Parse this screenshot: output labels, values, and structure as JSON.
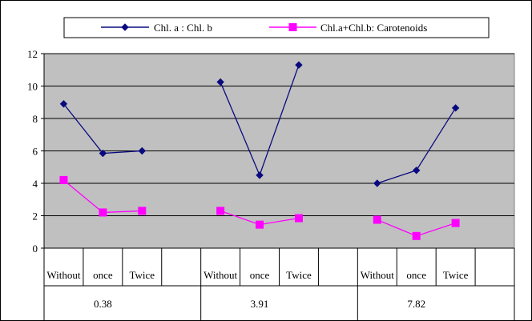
{
  "chart_data": {
    "type": "line",
    "title": "",
    "xlabel": "",
    "ylabel": "",
    "ylim": [
      0,
      12
    ],
    "yticks": [
      "0",
      "2",
      "4",
      "6",
      "8",
      "10",
      "12"
    ],
    "grid": true,
    "legend_position": "top",
    "groups": [
      {
        "label": "0.38",
        "categories": [
          "Without",
          "once",
          "Twice"
        ]
      },
      {
        "label": "3.91",
        "categories": [
          "Without",
          "once",
          "Twice"
        ]
      },
      {
        "label": "7.82",
        "categories": [
          "Without",
          "once",
          "Twice"
        ]
      }
    ],
    "series": [
      {
        "name": "Chl. a : Chl. b",
        "color": "#0a0a80",
        "marker": "diamond",
        "values": [
          [
            8.9,
            5.85,
            6.0
          ],
          [
            10.25,
            4.5,
            11.3
          ],
          [
            4.0,
            4.8,
            8.65
          ]
        ]
      },
      {
        "name": "Chl.a+Chl.b: Carotenoids",
        "color": "#ff00ff",
        "marker": "square",
        "values": [
          [
            4.2,
            2.2,
            2.3
          ],
          [
            2.3,
            1.45,
            1.85
          ],
          [
            1.75,
            0.75,
            1.55
          ]
        ]
      }
    ]
  }
}
